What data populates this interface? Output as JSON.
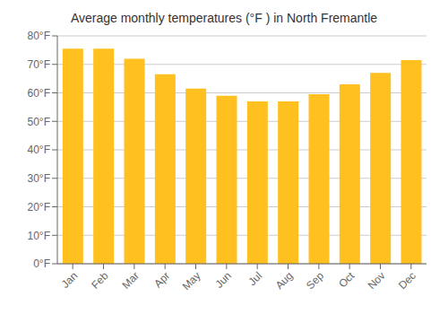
{
  "chart_data": {
    "type": "bar",
    "title": "Average monthly temperatures (°F ) in North Fremantle",
    "categories": [
      "Jan",
      "Feb",
      "Mar",
      "Apr",
      "May",
      "Jun",
      "Jul",
      "Aug",
      "Sep",
      "Oct",
      "Nov",
      "Dec"
    ],
    "values": [
      75.5,
      75.5,
      72.0,
      66.5,
      61.5,
      59.0,
      57.0,
      57.0,
      59.5,
      63.0,
      67.0,
      71.5
    ],
    "color": "#FFC020",
    "ylim": [
      0,
      80
    ],
    "yticks": [
      {
        "value": 0,
        "label": "0°F"
      },
      {
        "value": 10,
        "label": "10°F"
      },
      {
        "value": 20,
        "label": "20°F"
      },
      {
        "value": 30,
        "label": "30°F"
      },
      {
        "value": 40,
        "label": "40°F"
      },
      {
        "value": 50,
        "label": "50°F"
      },
      {
        "value": 60,
        "label": "60°F"
      },
      {
        "value": 70,
        "label": "70°F"
      },
      {
        "value": 80,
        "label": "80°F"
      }
    ],
    "grid": true
  }
}
